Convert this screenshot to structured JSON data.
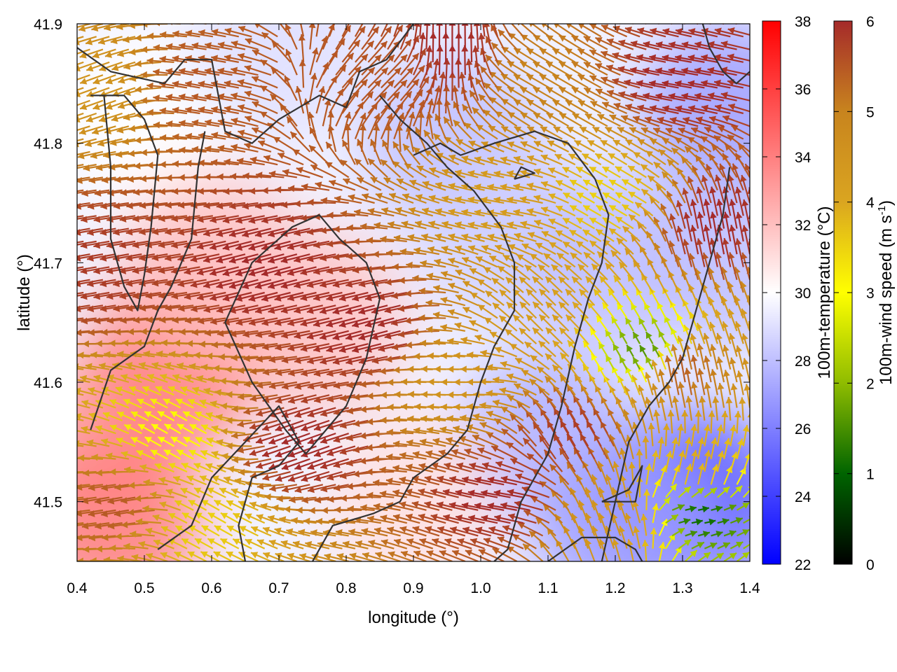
{
  "chart_data": {
    "type": "heatmap",
    "subtype": "temperature field with wind-vector overlay and terrain contours",
    "xlabel": "longitude (°)",
    "ylabel": "latitude (°)",
    "xlim": [
      0.4,
      1.4
    ],
    "ylim": [
      41.45,
      41.9
    ],
    "x_ticks": [
      0.4,
      0.5,
      0.6,
      0.7,
      0.8,
      0.9,
      1.0,
      1.1,
      1.2,
      1.3,
      1.4
    ],
    "x_tick_labels": [
      "0.4",
      "0.5",
      "0.6",
      "0.7",
      "0.8",
      "0.9",
      "1.0",
      "1.1",
      "1.2",
      "1.3",
      "1.4"
    ],
    "y_ticks": [
      41.5,
      41.6,
      41.7,
      41.8,
      41.9
    ],
    "y_tick_labels": [
      "41.5",
      "41.6",
      "41.7",
      "41.8",
      "41.9"
    ],
    "grid": false,
    "temperature_colorbar": {
      "label": "100m-temperature (°C)",
      "range": [
        22,
        38
      ],
      "ticks": [
        22,
        24,
        26,
        28,
        30,
        32,
        34,
        36,
        38
      ],
      "tick_labels": [
        "22",
        "24",
        "26",
        "28",
        "30",
        "32",
        "34",
        "36",
        "38"
      ],
      "colors": [
        "#0000ff",
        "#ffffff",
        "#ff0000"
      ]
    },
    "wind_colorbar": {
      "label_main": "100m-wind speed (m s",
      "label_sup": "-1",
      "label_end": ")",
      "range": [
        0,
        6
      ],
      "ticks": [
        0,
        1,
        2,
        3,
        4,
        5,
        6
      ],
      "tick_labels": [
        "0",
        "1",
        "2",
        "3",
        "4",
        "5",
        "6"
      ],
      "colors": [
        "#000000",
        "#006400",
        "#8fbc00",
        "#ffff00",
        "#daa520",
        "#c8841e",
        "#a52a2a"
      ]
    },
    "temperature_field": [
      {
        "lon": 0.45,
        "lat": 41.55,
        "t": 33
      },
      {
        "lon": 0.45,
        "lat": 41.48,
        "t": 34
      },
      {
        "lon": 0.55,
        "lat": 41.62,
        "t": 34
      },
      {
        "lon": 0.5,
        "lat": 41.82,
        "t": 30
      },
      {
        "lon": 0.6,
        "lat": 41.7,
        "t": 32
      },
      {
        "lon": 0.75,
        "lat": 41.65,
        "t": 32
      },
      {
        "lon": 0.7,
        "lat": 41.88,
        "t": 29
      },
      {
        "lon": 0.96,
        "lat": 41.8,
        "t": 28
      },
      {
        "lon": 1.05,
        "lat": 41.72,
        "t": 28.5
      },
      {
        "lon": 1.2,
        "lat": 41.7,
        "t": 28
      },
      {
        "lon": 1.1,
        "lat": 41.55,
        "t": 27.5
      },
      {
        "lon": 1.32,
        "lat": 41.5,
        "t": 24.5
      },
      {
        "lon": 1.37,
        "lat": 41.83,
        "t": 27
      },
      {
        "lon": 1.37,
        "lat": 41.7,
        "t": 28
      },
      {
        "lon": 1.22,
        "lat": 41.47,
        "t": 27
      },
      {
        "lon": 0.9,
        "lat": 41.5,
        "t": 31
      }
    ],
    "wind_field": [
      {
        "lon": 0.45,
        "lat": 41.85,
        "dir_deg": 200,
        "speed": 4.5
      },
      {
        "lon": 0.6,
        "lat": 41.85,
        "dir_deg": 170,
        "speed": 5.5
      },
      {
        "lon": 0.45,
        "lat": 41.7,
        "dir_deg": 190,
        "speed": 5.8
      },
      {
        "lon": 0.7,
        "lat": 41.7,
        "dir_deg": 195,
        "speed": 6
      },
      {
        "lon": 0.85,
        "lat": 41.65,
        "dir_deg": 195,
        "speed": 6
      },
      {
        "lon": 0.75,
        "lat": 41.55,
        "dir_deg": 200,
        "speed": 6
      },
      {
        "lon": 0.55,
        "lat": 41.55,
        "dir_deg": 150,
        "speed": 3
      },
      {
        "lon": 0.48,
        "lat": 41.5,
        "dir_deg": 190,
        "speed": 5.5
      },
      {
        "lon": 0.95,
        "lat": 41.87,
        "dir_deg": 90,
        "speed": 6
      },
      {
        "lon": 0.85,
        "lat": 41.85,
        "dir_deg": 45,
        "speed": 5.5
      },
      {
        "lon": 1.1,
        "lat": 41.85,
        "dir_deg": 150,
        "speed": 5
      },
      {
        "lon": 1.05,
        "lat": 41.75,
        "dir_deg": 170,
        "speed": 4.3
      },
      {
        "lon": 1.2,
        "lat": 41.75,
        "dir_deg": 150,
        "speed": 3.5
      },
      {
        "lon": 1.1,
        "lat": 41.65,
        "dir_deg": 135,
        "speed": 4.2
      },
      {
        "lon": 1.0,
        "lat": 41.6,
        "dir_deg": 180,
        "speed": 4.5
      },
      {
        "lon": 1.15,
        "lat": 41.55,
        "dir_deg": 120,
        "speed": 5.8
      },
      {
        "lon": 1.05,
        "lat": 41.5,
        "dir_deg": 170,
        "speed": 6
      },
      {
        "lon": 1.32,
        "lat": 41.85,
        "dir_deg": 170,
        "speed": 6
      },
      {
        "lon": 1.35,
        "lat": 41.72,
        "dir_deg": 100,
        "speed": 6
      },
      {
        "lon": 1.3,
        "lat": 41.6,
        "dir_deg": 100,
        "speed": 5.5
      },
      {
        "lon": 1.25,
        "lat": 41.62,
        "dir_deg": 120,
        "speed": 1.5
      },
      {
        "lon": 1.32,
        "lat": 41.52,
        "dir_deg": 80,
        "speed": 4
      },
      {
        "lon": 1.32,
        "lat": 41.49,
        "dir_deg": 10,
        "speed": 1
      },
      {
        "lon": 1.2,
        "lat": 41.48,
        "dir_deg": 110,
        "speed": 4.5
      },
      {
        "lon": 0.6,
        "lat": 41.48,
        "dir_deg": 150,
        "speed": 3.5
      }
    ],
    "contours": [
      [
        [
          0.42,
          41.84
        ],
        [
          0.47,
          41.84
        ],
        [
          0.5,
          41.82
        ],
        [
          0.52,
          41.79
        ],
        [
          0.51,
          41.73
        ],
        [
          0.5,
          41.69
        ],
        [
          0.49,
          41.66
        ],
        [
          0.47,
          41.68
        ],
        [
          0.45,
          41.72
        ],
        [
          0.45,
          41.78
        ],
        [
          0.44,
          41.84
        ]
      ],
      [
        [
          0.4,
          41.88
        ],
        [
          0.45,
          41.86
        ],
        [
          0.53,
          41.85
        ],
        [
          0.56,
          41.87
        ],
        [
          0.6,
          41.87
        ],
        [
          0.61,
          41.84
        ],
        [
          0.62,
          41.81
        ],
        [
          0.66,
          41.8
        ],
        [
          0.7,
          41.82
        ],
        [
          0.76,
          41.84
        ],
        [
          0.8,
          41.83
        ],
        [
          0.82,
          41.86
        ],
        [
          0.86,
          41.87
        ],
        [
          0.9,
          41.9
        ]
      ],
      [
        [
          0.59,
          41.81
        ],
        [
          0.58,
          41.78
        ],
        [
          0.57,
          41.72
        ],
        [
          0.54,
          41.68
        ],
        [
          0.52,
          41.66
        ],
        [
          0.5,
          41.63
        ],
        [
          0.45,
          41.61
        ],
        [
          0.42,
          41.56
        ]
      ],
      [
        [
          0.52,
          41.46
        ],
        [
          0.57,
          41.48
        ],
        [
          0.6,
          41.52
        ],
        [
          0.65,
          41.55
        ],
        [
          0.7,
          41.58
        ],
        [
          0.73,
          41.55
        ],
        [
          0.7,
          41.53
        ],
        [
          0.66,
          41.52
        ],
        [
          0.64,
          41.48
        ],
        [
          0.65,
          41.45
        ]
      ],
      [
        [
          0.71,
          41.56
        ],
        [
          0.66,
          41.6
        ],
        [
          0.62,
          41.65
        ],
        [
          0.66,
          41.7
        ],
        [
          0.72,
          41.73
        ],
        [
          0.76,
          41.74
        ],
        [
          0.79,
          41.72
        ],
        [
          0.83,
          41.7
        ],
        [
          0.85,
          41.67
        ],
        [
          0.83,
          41.62
        ],
        [
          0.8,
          41.58
        ],
        [
          0.77,
          41.56
        ],
        [
          0.74,
          41.54
        ],
        [
          0.71,
          41.56
        ]
      ],
      [
        [
          0.75,
          41.45
        ],
        [
          0.78,
          41.48
        ],
        [
          0.84,
          41.49
        ],
        [
          0.88,
          41.5
        ],
        [
          0.9,
          41.52
        ],
        [
          0.95,
          41.54
        ],
        [
          0.98,
          41.56
        ],
        [
          1.0,
          41.6
        ],
        [
          1.02,
          41.63
        ],
        [
          1.05,
          41.66
        ],
        [
          1.05,
          41.7
        ],
        [
          1.03,
          41.73
        ],
        [
          0.99,
          41.76
        ],
        [
          0.95,
          41.78
        ],
        [
          0.92,
          41.8
        ],
        [
          0.88,
          41.82
        ],
        [
          0.85,
          41.84
        ]
      ],
      [
        [
          0.9,
          41.79
        ],
        [
          0.94,
          41.8
        ],
        [
          0.97,
          41.79
        ],
        [
          1.02,
          41.8
        ],
        [
          1.08,
          41.81
        ],
        [
          1.13,
          41.8
        ],
        [
          1.17,
          41.77
        ],
        [
          1.19,
          41.74
        ],
        [
          1.18,
          41.7
        ],
        [
          1.16,
          41.67
        ],
        [
          1.14,
          41.63
        ],
        [
          1.12,
          41.58
        ],
        [
          1.1,
          41.54
        ],
        [
          1.06,
          41.5
        ],
        [
          1.04,
          41.46
        ],
        [
          1.02,
          41.45
        ]
      ],
      [
        [
          1.1,
          41.45
        ],
        [
          1.15,
          41.47
        ],
        [
          1.2,
          41.47
        ],
        [
          1.23,
          41.46
        ],
        [
          1.24,
          41.45
        ]
      ],
      [
        [
          1.18,
          41.5
        ],
        [
          1.22,
          41.51
        ],
        [
          1.24,
          41.53
        ],
        [
          1.23,
          41.5
        ],
        [
          1.18,
          41.5
        ]
      ],
      [
        [
          1.18,
          41.45
        ],
        [
          1.2,
          41.5
        ],
        [
          1.22,
          41.55
        ],
        [
          1.25,
          41.58
        ],
        [
          1.28,
          41.6
        ],
        [
          1.3,
          41.62
        ],
        [
          1.32,
          41.66
        ],
        [
          1.34,
          41.7
        ],
        [
          1.36,
          41.74
        ],
        [
          1.37,
          41.78
        ]
      ],
      [
        [
          1.05,
          41.77
        ],
        [
          1.08,
          41.775
        ],
        [
          1.06,
          41.78
        ],
        [
          1.05,
          41.77
        ]
      ],
      [
        [
          1.33,
          41.9
        ],
        [
          1.34,
          41.88
        ],
        [
          1.36,
          41.86
        ],
        [
          1.38,
          41.85
        ],
        [
          1.4,
          41.86
        ]
      ]
    ]
  }
}
